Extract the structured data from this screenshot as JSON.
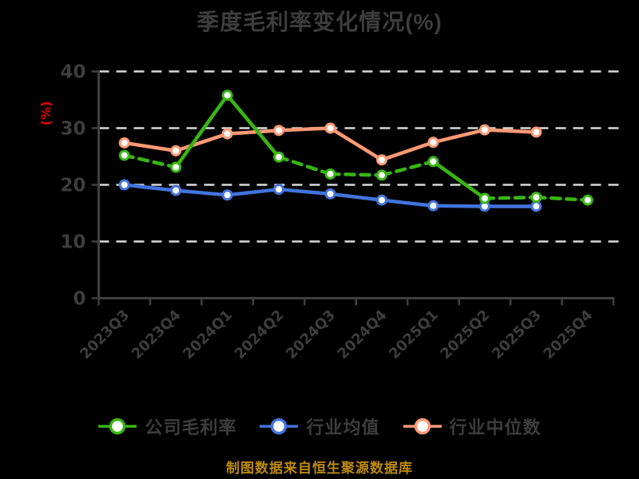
{
  "colors": {
    "background": "#000000",
    "text": "#3d3d3d",
    "axis": "#3f3f3f",
    "grid": "#d9d9d9",
    "ylabel": "#e80000",
    "caption": "#bd8a0c",
    "marker_fill": "#ffffff"
  },
  "chart_data": {
    "type": "line",
    "title": "季度毛利率变化情况(%)",
    "ylabel": "(%)",
    "xlabel": "",
    "ylim": [
      0,
      40
    ],
    "yticks": [
      0,
      10,
      20,
      30,
      40
    ],
    "grid": "horizontal dashed white gridlines at 10, 20, 30, 40",
    "legend_position": "bottom",
    "x_label_rotation": 45,
    "categories": [
      "2023Q3",
      "2023Q4",
      "2024Q1",
      "2024Q2",
      "2024Q3",
      "2024Q4",
      "2025Q1",
      "2025Q2",
      "2025Q3",
      "2025Q4"
    ],
    "series": [
      {
        "name": "公司毛利率",
        "color": "#38b614",
        "marker": "circle-white-fill",
        "values": [
          25.2,
          23.1,
          35.8,
          24.9,
          21.9,
          21.7,
          24.1,
          17.6,
          17.8,
          17.3
        ],
        "dashed_segments": [
          true,
          false,
          false,
          true,
          true,
          true,
          false,
          true,
          true
        ]
      },
      {
        "name": "行业均值",
        "color": "#4274dd",
        "marker": "circle-white-fill",
        "values": [
          20.0,
          19.0,
          18.2,
          19.2,
          18.4,
          17.3,
          16.3,
          16.2,
          16.2,
          null
        ],
        "dashed_segments": [
          false,
          false,
          false,
          false,
          false,
          false,
          false,
          false,
          false
        ]
      },
      {
        "name": "行业中位数",
        "color": "#ff9a76",
        "marker": "circle-white-fill",
        "values": [
          27.4,
          26.0,
          29.0,
          29.6,
          30.0,
          24.4,
          27.5,
          29.7,
          29.3,
          null
        ],
        "dashed_segments": [
          false,
          false,
          false,
          false,
          false,
          false,
          false,
          false,
          false
        ]
      }
    ],
    "caption": "制图数据来自恒生聚源数据库"
  }
}
